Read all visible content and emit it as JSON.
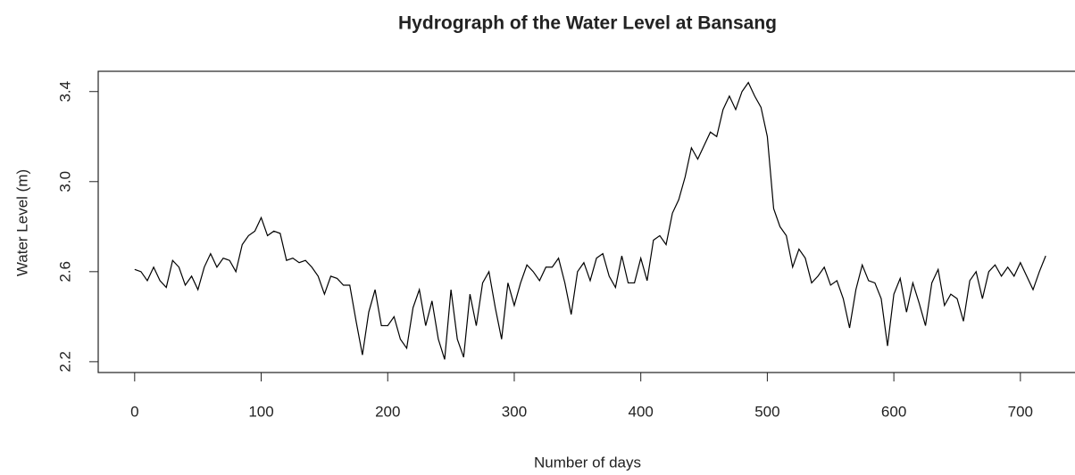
{
  "chart_data": {
    "type": "line",
    "title": "Hydrograph of the Water Level at Bansang",
    "x_label": "Number of days",
    "y_label": "Water Level (m)",
    "xlim": [
      -28.8,
      748.8
    ],
    "ylim": [
      2.152,
      3.49
    ],
    "xticks": [
      0,
      100,
      200,
      300,
      400,
      500,
      600,
      700
    ],
    "yticks": [
      2.2,
      2.6,
      {
        "value": 3,
        "label": "3.0"
      },
      3.4
    ],
    "series": [
      {
        "name": "Water Level",
        "color": "#000000",
        "x": [
          0,
          5,
          10,
          15,
          20,
          25,
          30,
          35,
          40,
          45,
          50,
          55,
          60,
          65,
          70,
          75,
          80,
          85,
          90,
          95,
          100,
          105,
          110,
          115,
          120,
          125,
          130,
          135,
          140,
          145,
          150,
          155,
          160,
          165,
          170,
          175,
          180,
          185,
          190,
          195,
          200,
          205,
          210,
          215,
          220,
          225,
          230,
          235,
          240,
          245,
          250,
          255,
          260,
          265,
          270,
          275,
          280,
          285,
          290,
          295,
          300,
          305,
          310,
          315,
          320,
          325,
          330,
          335,
          340,
          345,
          350,
          355,
          360,
          365,
          370,
          375,
          380,
          385,
          390,
          395,
          400,
          405,
          410,
          415,
          420,
          425,
          430,
          435,
          440,
          445,
          450,
          455,
          460,
          465,
          470,
          475,
          480,
          485,
          490,
          495,
          500,
          505,
          510,
          515,
          520,
          525,
          530,
          535,
          540,
          545,
          550,
          555,
          560,
          565,
          570,
          575,
          580,
          585,
          590,
          595,
          600,
          605,
          610,
          615,
          620,
          625,
          630,
          635,
          640,
          645,
          650,
          655,
          660,
          665,
          670,
          675,
          680,
          685,
          690,
          695,
          700,
          705,
          710,
          715,
          720
        ],
        "values": [
          2.61,
          2.6,
          2.56,
          2.62,
          2.56,
          2.53,
          2.65,
          2.62,
          2.54,
          2.58,
          2.52,
          2.62,
          2.68,
          2.62,
          2.66,
          2.65,
          2.6,
          2.72,
          2.76,
          2.78,
          2.84,
          2.76,
          2.78,
          2.77,
          2.65,
          2.66,
          2.64,
          2.65,
          2.62,
          2.58,
          2.5,
          2.58,
          2.57,
          2.54,
          2.54,
          2.38,
          2.23,
          2.42,
          2.52,
          2.36,
          2.36,
          2.4,
          2.3,
          2.26,
          2.44,
          2.52,
          2.36,
          2.47,
          2.3,
          2.21,
          2.52,
          2.3,
          2.22,
          2.5,
          2.36,
          2.55,
          2.6,
          2.44,
          2.3,
          2.55,
          2.45,
          2.55,
          2.63,
          2.6,
          2.56,
          2.62,
          2.62,
          2.66,
          2.55,
          2.41,
          2.6,
          2.64,
          2.56,
          2.66,
          2.68,
          2.58,
          2.53,
          2.67,
          2.55,
          2.55,
          2.66,
          2.56,
          2.74,
          2.76,
          2.72,
          2.86,
          2.92,
          3.02,
          3.15,
          3.1,
          3.16,
          3.22,
          3.2,
          3.32,
          3.38,
          3.32,
          3.4,
          3.44,
          3.38,
          3.33,
          3.2,
          2.88,
          2.8,
          2.76,
          2.62,
          2.7,
          2.66,
          2.55,
          2.58,
          2.62,
          2.54,
          2.56,
          2.48,
          2.35,
          2.52,
          2.63,
          2.56,
          2.55,
          2.48,
          2.27,
          2.5,
          2.57,
          2.42,
          2.55,
          2.46,
          2.36,
          2.55,
          2.61,
          2.45,
          2.5,
          2.48,
          2.38,
          2.56,
          2.6,
          2.48,
          2.6,
          2.63,
          2.58,
          2.62,
          2.58,
          2.64,
          2.58,
          2.52,
          2.6,
          2.67
        ]
      }
    ]
  }
}
